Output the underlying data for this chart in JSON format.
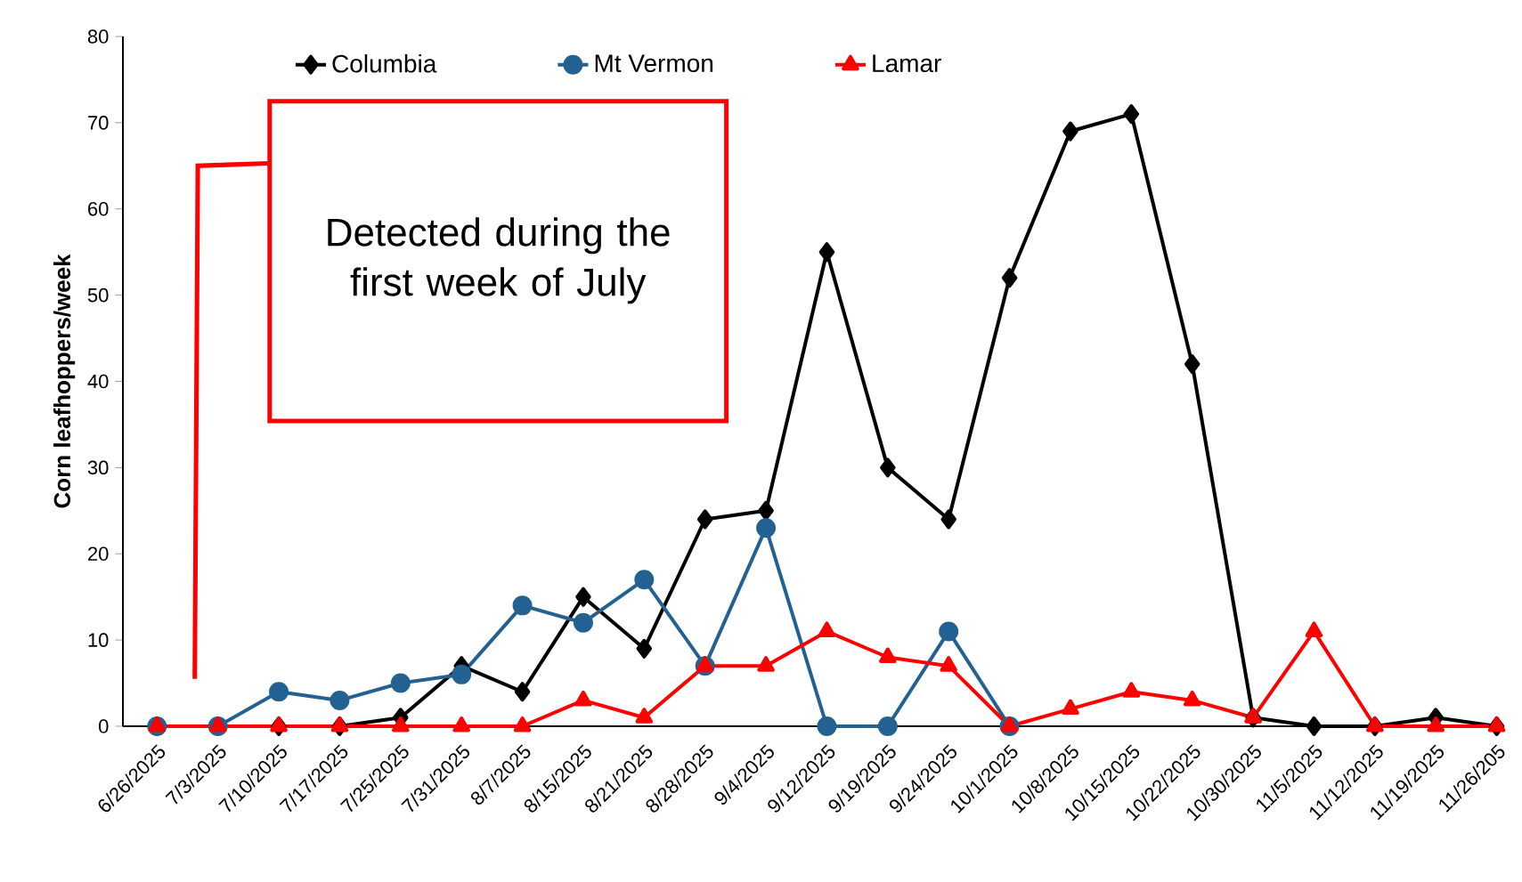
{
  "chart_data": {
    "type": "line",
    "ylabel": "Corn leafhoppers/week",
    "categories": [
      "6/26/2025",
      "7/3/2025",
      "7/10/2025",
      "7/17/2025",
      "7/25/2025",
      "7/31/2025",
      "8/7/2025",
      "8/15/2025",
      "8/21/2025",
      "8/28/2025",
      "9/4/2025",
      "9/12/2025",
      "9/19/2025",
      "9/24/2025",
      "10/1/2025",
      "10/8/2025",
      "10/15/2025",
      "10/22/2025",
      "10/30/2025",
      "11/5/2025",
      "11/12/2025",
      "11/19/2025",
      "11/26/205"
    ],
    "series": [
      {
        "name": "Columbia",
        "color": "#000000",
        "marker": "diamond",
        "values": [
          0,
          0,
          0,
          0,
          1,
          7,
          4,
          15,
          9,
          24,
          25,
          55,
          30,
          24,
          52,
          69,
          71,
          42,
          1,
          0,
          0,
          1,
          0
        ]
      },
      {
        "name": "Mt Vermon",
        "color": "#236192",
        "marker": "circle",
        "values": [
          0,
          0,
          4,
          3,
          5,
          6,
          14,
          12,
          17,
          7,
          23,
          0,
          0,
          11,
          0,
          null,
          null,
          null,
          null,
          null,
          null,
          null,
          null
        ]
      },
      {
        "name": "Lamar",
        "color": "#ff0000",
        "marker": "triangle",
        "values": [
          0,
          0,
          0,
          0,
          0,
          0,
          0,
          3,
          1,
          7,
          7,
          11,
          8,
          7,
          0,
          2,
          4,
          3,
          1,
          11,
          0,
          0,
          0
        ]
      }
    ],
    "ylim": [
      0,
      80
    ],
    "yticks": [
      0,
      10,
      20,
      30,
      40,
      50,
      60,
      70,
      80
    ],
    "grid": false,
    "legend": "top",
    "line_style": "solid",
    "annotations": [
      "Detected during the first week of July"
    ]
  }
}
